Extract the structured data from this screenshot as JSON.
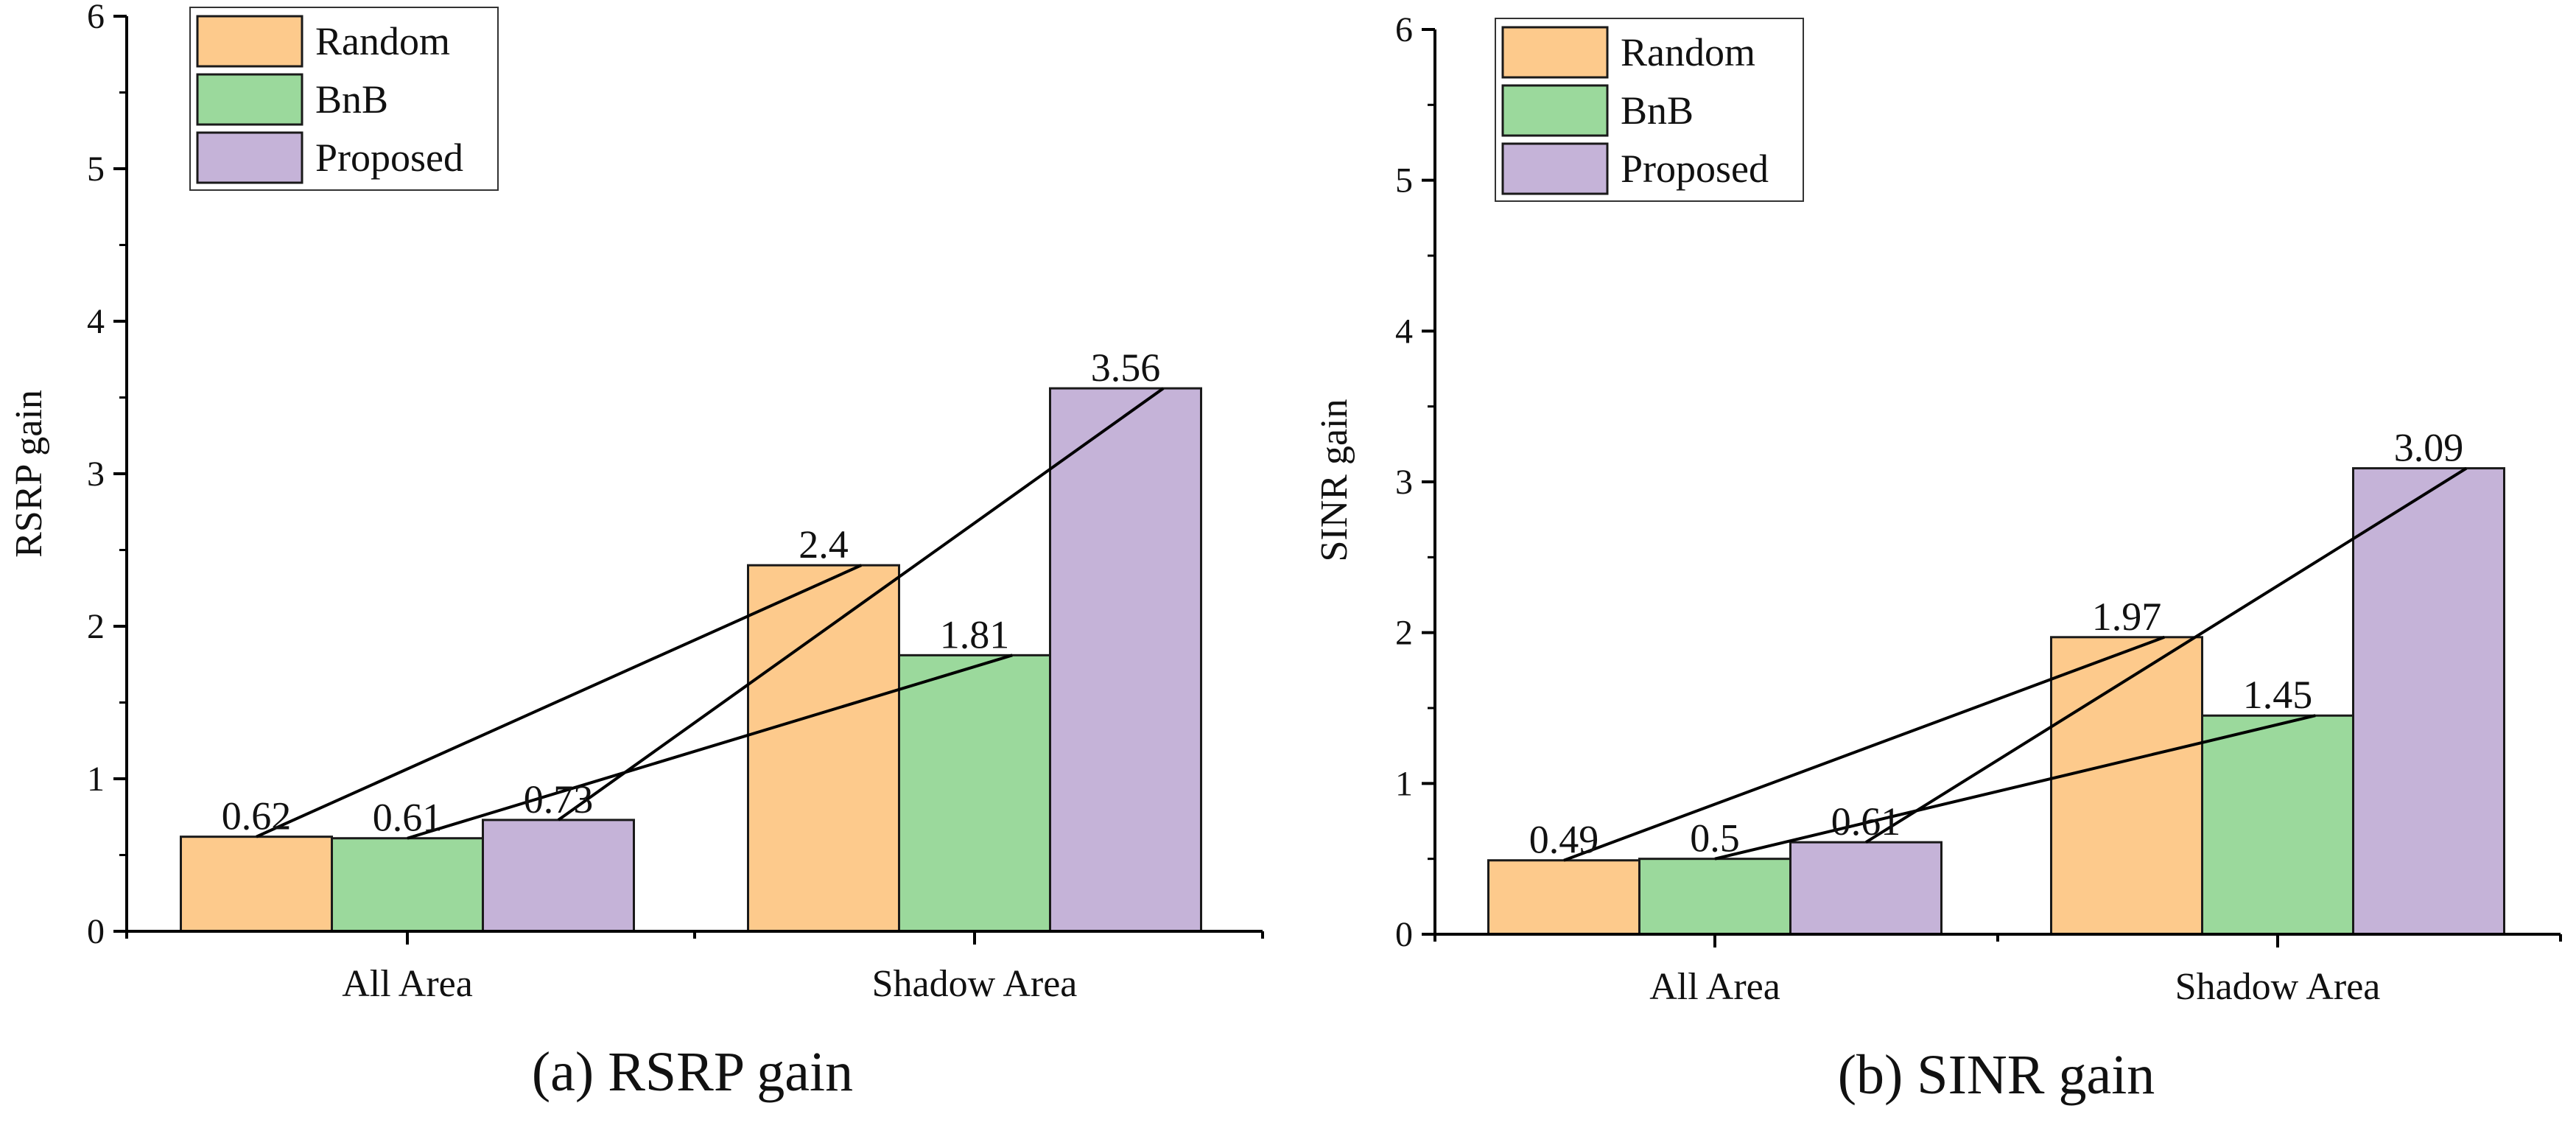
{
  "colors": {
    "Random": "#fdca8c",
    "BnB": "#9bd99c",
    "Proposed": "#c5b3d8",
    "stroke": "#1a1a1a"
  },
  "chart_data": [
    {
      "type": "bar",
      "caption": "(a) RSRP gain",
      "ylabel": "RSRP gain",
      "xlabel": "",
      "categories": [
        "All Area",
        "Shadow Area"
      ],
      "ylim": [
        0,
        6
      ],
      "yticks": [
        "0",
        "1",
        "2",
        "3",
        "4",
        "5",
        "6"
      ],
      "legend_position": "top-left",
      "grid": false,
      "series": [
        {
          "name": "Random",
          "values": [
            0.62,
            2.4
          ],
          "labels": [
            "0.62",
            "2.4"
          ]
        },
        {
          "name": "BnB",
          "values": [
            0.61,
            1.81
          ],
          "labels": [
            "0.61",
            "1.81"
          ]
        },
        {
          "name": "Proposed",
          "values": [
            0.73,
            3.56
          ],
          "labels": [
            "0.73",
            "3.56"
          ]
        }
      ],
      "connectors": "lines connect each series' All Area bar top to its Shadow Area bar top"
    },
    {
      "type": "bar",
      "caption": "(b) SINR gain",
      "ylabel": "SINR gain",
      "xlabel": "",
      "categories": [
        "All Area",
        "Shadow Area"
      ],
      "ylim": [
        0,
        6
      ],
      "yticks": [
        "0",
        "1",
        "2",
        "3",
        "4",
        "5",
        "6"
      ],
      "legend_position": "top-left",
      "grid": false,
      "series": [
        {
          "name": "Random",
          "values": [
            0.49,
            1.97
          ],
          "labels": [
            "0.49",
            "1.97"
          ]
        },
        {
          "name": "BnB",
          "values": [
            0.5,
            1.45
          ],
          "labels": [
            "0.5",
            "1.45"
          ]
        },
        {
          "name": "Proposed",
          "values": [
            0.61,
            3.09
          ],
          "labels": [
            "0.61",
            "3.09"
          ]
        }
      ],
      "connectors": "lines connect each series' All Area bar top to its Shadow Area bar top"
    }
  ]
}
